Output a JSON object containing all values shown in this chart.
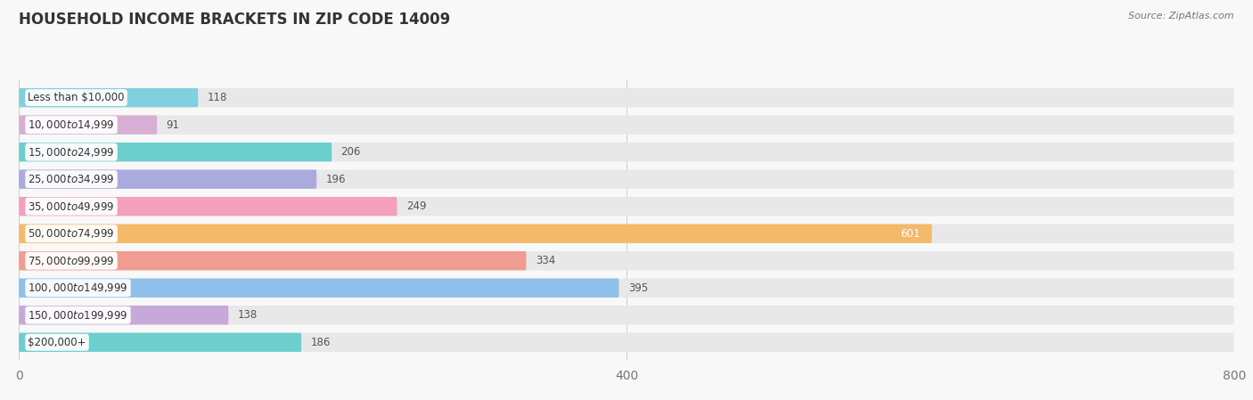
{
  "title": "HOUSEHOLD INCOME BRACKETS IN ZIP CODE 14009",
  "source": "Source: ZipAtlas.com",
  "categories": [
    "Less than $10,000",
    "$10,000 to $14,999",
    "$15,000 to $24,999",
    "$25,000 to $34,999",
    "$35,000 to $49,999",
    "$50,000 to $74,999",
    "$75,000 to $99,999",
    "$100,000 to $149,999",
    "$150,000 to $199,999",
    "$200,000+"
  ],
  "values": [
    118,
    91,
    206,
    196,
    249,
    601,
    334,
    395,
    138,
    186
  ],
  "bar_colors": [
    "#80d0e0",
    "#d8afd4",
    "#6dcece",
    "#abaade",
    "#f49fbe",
    "#f5b96a",
    "#f09c90",
    "#8fc0ea",
    "#c8a8d8",
    "#6dcece"
  ],
  "value_inside": [
    false,
    false,
    false,
    false,
    false,
    true,
    false,
    false,
    false,
    false
  ],
  "xlim_max": 800,
  "xticks": [
    0,
    400,
    800
  ],
  "bg_color": "#f8f8f8",
  "bar_bg_color": "#e8e8e8",
  "title_fontsize": 12,
  "source_fontsize": 8,
  "tick_fontsize": 10,
  "cat_fontsize": 8.5,
  "val_fontsize": 8.5,
  "bar_height": 0.7,
  "title_color": "#333333",
  "source_color": "#777777",
  "tick_color": "#777777",
  "cat_label_color": "#333333",
  "val_color_outside": "#555555",
  "val_color_inside": "#ffffff"
}
